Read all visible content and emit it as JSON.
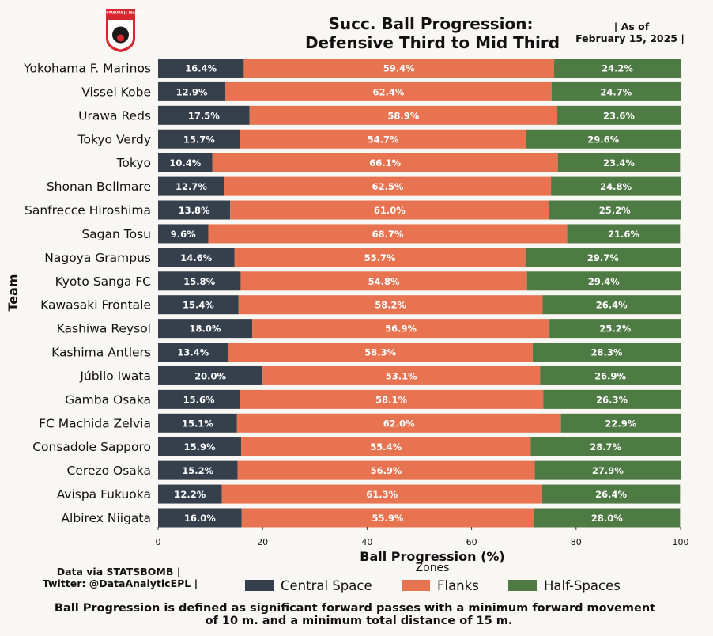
{
  "title_line1": "Succ. Ball Progression:",
  "title_line2": "Defensive Third to Mid Third",
  "date_line1": "| As of",
  "date_line2": "February 15, 2025 |",
  "logo_text": "MEIJI YASUDA J1 LEAGUE",
  "source_line1": "Data via STATSBOMB |",
  "source_line2": "Twitter: @DataAnalyticEPL |",
  "footnote_line1": "Ball Progression is defined as significant forward passes with a minimum forward movement",
  "footnote_line2": "of 10 m. and a minimum total distance of 15 m.",
  "colors": {
    "background": "#f8f7f3",
    "central": "#36404c",
    "flanks": "#e87351",
    "half_spaces": "#4e7a43",
    "logo_red": "#d7282f"
  },
  "chart_data": {
    "type": "bar",
    "orientation": "horizontal",
    "stacked": true,
    "xlabel": "Ball Progression (%)",
    "ylabel": "Team",
    "xlim": [
      0,
      100
    ],
    "xticks": [
      0,
      20,
      40,
      60,
      80,
      100
    ],
    "legend_title": "Zones",
    "legend_position": "bottom-center",
    "categories": [
      "Yokohama F. Marinos",
      "Vissel Kobe",
      "Urawa Reds",
      "Tokyo Verdy",
      "Tokyo",
      "Shonan Bellmare",
      "Sanfrecce Hiroshima",
      "Sagan Tosu",
      "Nagoya Grampus",
      "Kyoto Sanga FC",
      "Kawasaki Frontale",
      "Kashiwa Reysol",
      "Kashima Antlers",
      "Júbilo Iwata",
      "Gamba Osaka",
      "FC Machida Zelvia",
      "Consadole Sapporo",
      "Cerezo Osaka",
      "Avispa Fukuoka",
      "Albirex Niigata"
    ],
    "series": [
      {
        "name": "Central Space",
        "color": "#36404c",
        "values": [
          16.4,
          12.9,
          17.5,
          15.7,
          10.4,
          12.7,
          13.8,
          9.6,
          14.6,
          15.8,
          15.4,
          18.0,
          13.4,
          20.0,
          15.6,
          15.1,
          15.9,
          15.2,
          12.2,
          16.0
        ]
      },
      {
        "name": "Flanks",
        "color": "#e87351",
        "values": [
          59.4,
          62.4,
          58.9,
          54.7,
          66.1,
          62.5,
          61.0,
          68.7,
          55.7,
          54.8,
          58.2,
          56.9,
          58.3,
          53.1,
          58.1,
          62.0,
          55.4,
          56.9,
          61.3,
          55.9
        ]
      },
      {
        "name": "Half-Spaces",
        "color": "#4e7a43",
        "values": [
          24.2,
          24.7,
          23.6,
          29.6,
          23.4,
          24.8,
          25.2,
          21.6,
          29.7,
          29.4,
          26.4,
          25.2,
          28.3,
          26.9,
          26.3,
          22.9,
          28.7,
          27.9,
          26.4,
          28.0
        ]
      }
    ]
  }
}
